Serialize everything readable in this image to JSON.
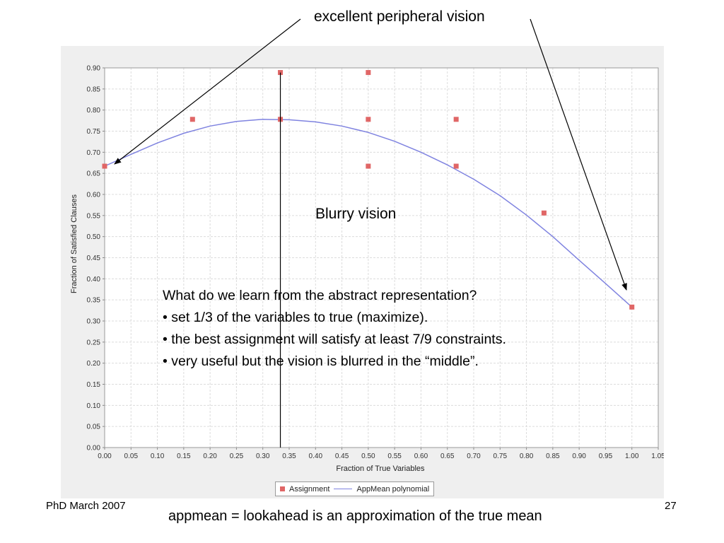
{
  "slide": {
    "callout_top": "excellent peripheral vision",
    "callout_middle": "Blurry vision",
    "body_lines": [
      "What do we learn from the abstract representation?",
      "• set 1/3 of the variables to true (maximize).",
      "• the best assignment will satisfy at least 7/9 constraints.",
      "• very useful but the vision is blurred in the “middle”."
    ],
    "footer_left": "PhD March 2007",
    "footer_caption": "appmean = lookahead is an approximation of the true mean",
    "page_number": "27"
  },
  "chart_data": {
    "type": "scatter",
    "xlabel": "Fraction of True Variables",
    "ylabel": "Fraction of Satisfied Clauses",
    "xlim": [
      0.0,
      1.05
    ],
    "ylim": [
      0.0,
      0.9
    ],
    "xticks": [
      "0.00",
      "0.05",
      "0.10",
      "0.15",
      "0.20",
      "0.25",
      "0.30",
      "0.35",
      "0.40",
      "0.45",
      "0.50",
      "0.55",
      "0.60",
      "0.65",
      "0.70",
      "0.75",
      "0.80",
      "0.85",
      "0.90",
      "0.95",
      "1.00",
      "1.05"
    ],
    "yticks": [
      "0.00",
      "0.05",
      "0.10",
      "0.15",
      "0.20",
      "0.25",
      "0.30",
      "0.35",
      "0.40",
      "0.45",
      "0.50",
      "0.55",
      "0.60",
      "0.65",
      "0.70",
      "0.75",
      "0.80",
      "0.85",
      "0.90"
    ],
    "grid": true,
    "legend_position": "bottom",
    "series": [
      {
        "name": "Assignment",
        "kind": "scatter",
        "color": "#e06666",
        "points": [
          [
            0.0,
            0.667
          ],
          [
            0.1667,
            0.778
          ],
          [
            0.3333,
            0.889
          ],
          [
            0.3333,
            0.778
          ],
          [
            0.5,
            0.889
          ],
          [
            0.5,
            0.778
          ],
          [
            0.5,
            0.667
          ],
          [
            0.6667,
            0.778
          ],
          [
            0.6667,
            0.667
          ],
          [
            0.8333,
            0.556
          ],
          [
            1.0,
            0.333
          ]
        ]
      },
      {
        "name": "AppMean polynomial",
        "kind": "line",
        "color": "#7f83e0",
        "points": [
          [
            0.0,
            0.667
          ],
          [
            0.05,
            0.695
          ],
          [
            0.1,
            0.722
          ],
          [
            0.15,
            0.745
          ],
          [
            0.2,
            0.762
          ],
          [
            0.25,
            0.773
          ],
          [
            0.3,
            0.778
          ],
          [
            0.35,
            0.777
          ],
          [
            0.4,
            0.772
          ],
          [
            0.45,
            0.762
          ],
          [
            0.5,
            0.747
          ],
          [
            0.55,
            0.726
          ],
          [
            0.6,
            0.7
          ],
          [
            0.65,
            0.67
          ],
          [
            0.7,
            0.636
          ],
          [
            0.75,
            0.597
          ],
          [
            0.8,
            0.551
          ],
          [
            0.85,
            0.5
          ],
          [
            0.9,
            0.444
          ],
          [
            0.95,
            0.389
          ],
          [
            1.0,
            0.333
          ]
        ]
      }
    ],
    "reference_line_x": 0.3333
  }
}
